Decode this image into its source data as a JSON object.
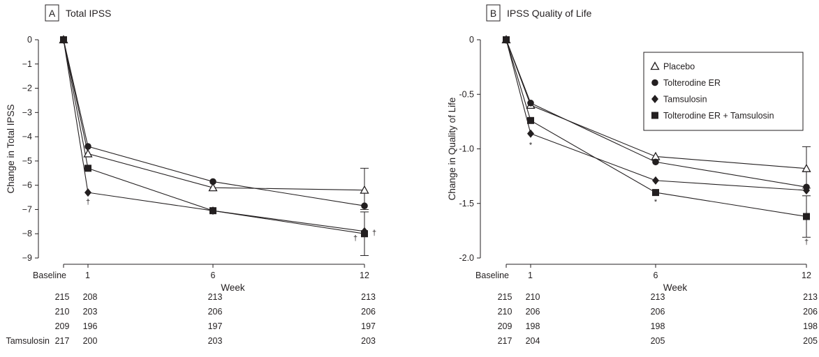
{
  "weeks_label": "Week",
  "x_tick_labels": [
    "Baseline",
    "1",
    "6",
    "12"
  ],
  "legend": [
    "Placebo",
    "Tolterodine ER",
    "Tamsulosin",
    "Tolterodine ER + Tamsulosin"
  ],
  "count_row_partial_label": "Tamsulosin",
  "chart_data": [
    {
      "type": "line",
      "panel": "A",
      "title": "Total IPSS",
      "xlabel": "Week",
      "ylabel": "Change in Total IPSS",
      "categories": [
        "Baseline",
        "1",
        "6",
        "12"
      ],
      "ylim": [
        -9,
        0
      ],
      "y_ticks": [
        "0",
        "−1",
        "−2",
        "−3",
        "−4",
        "−5",
        "−6",
        "−7",
        "−8",
        "−9"
      ],
      "series": [
        {
          "name": "Placebo",
          "marker": "triangle-open",
          "values": [
            0,
            -4.7,
            -6.1,
            -6.2
          ],
          "error_12": [
            -5.3,
            -7.0
          ]
        },
        {
          "name": "Tolterodine ER",
          "marker": "circle",
          "values": [
            0,
            -4.4,
            -5.85,
            -6.85
          ]
        },
        {
          "name": "Tamsulosin",
          "marker": "diamond",
          "values": [
            0,
            -6.3,
            -7.05,
            -7.9
          ]
        },
        {
          "name": "Tolterodine ER + Tamsulosin",
          "marker": "square",
          "values": [
            0,
            -5.3,
            -7.05,
            -8.0
          ],
          "error_12": [
            -7.1,
            -8.9
          ]
        }
      ],
      "annotations": [
        {
          "text": "†",
          "series": "Tamsulosin",
          "week": "1"
        },
        {
          "text": "†",
          "series": "Tamsulosin",
          "week": "12"
        },
        {
          "text": "†",
          "series": "Tolterodine ER + Tamsulosin",
          "week": "12"
        }
      ],
      "n_at_risk": [
        [
          "215",
          "208",
          "213",
          "213"
        ],
        [
          "210",
          "203",
          "206",
          "206"
        ],
        [
          "209",
          "196",
          "197",
          "197"
        ],
        [
          "217",
          "200",
          "203",
          "203"
        ]
      ]
    },
    {
      "type": "line",
      "panel": "B",
      "title": "IPSS Quality of Life",
      "xlabel": "Week",
      "ylabel": "Change in Quality of Life",
      "categories": [
        "Baseline",
        "1",
        "6",
        "12"
      ],
      "ylim": [
        -2.0,
        0
      ],
      "y_ticks": [
        "0",
        "-0.5",
        "-1.0",
        "-1.5",
        "-2.0"
      ],
      "legend_position": "top-right",
      "series": [
        {
          "name": "Placebo",
          "marker": "triangle-open",
          "values": [
            0,
            -0.6,
            -1.07,
            -1.18
          ],
          "error_12": [
            -0.98,
            -1.36
          ]
        },
        {
          "name": "Tolterodine ER",
          "marker": "circle",
          "values": [
            0,
            -0.58,
            -1.12,
            -1.35
          ]
        },
        {
          "name": "Tamsulosin",
          "marker": "diamond",
          "values": [
            0,
            -0.86,
            -1.29,
            -1.38
          ]
        },
        {
          "name": "Tolterodine ER + Tamsulosin",
          "marker": "square",
          "values": [
            0,
            -0.74,
            -1.4,
            -1.62
          ],
          "error_12": [
            -1.43,
            -1.81
          ]
        }
      ],
      "annotations": [
        {
          "text": "*",
          "series": "Tamsulosin",
          "week": "1"
        },
        {
          "text": "*",
          "series": "Tolterodine ER + Tamsulosin",
          "week": "6"
        },
        {
          "text": "†",
          "series": "Tolterodine ER + Tamsulosin",
          "week": "12"
        }
      ],
      "n_at_risk": [
        [
          "215",
          "210",
          "213",
          "213"
        ],
        [
          "210",
          "206",
          "206",
          "206"
        ],
        [
          "209",
          "198",
          "198",
          "198"
        ],
        [
          "217",
          "204",
          "205",
          "205"
        ]
      ]
    }
  ]
}
